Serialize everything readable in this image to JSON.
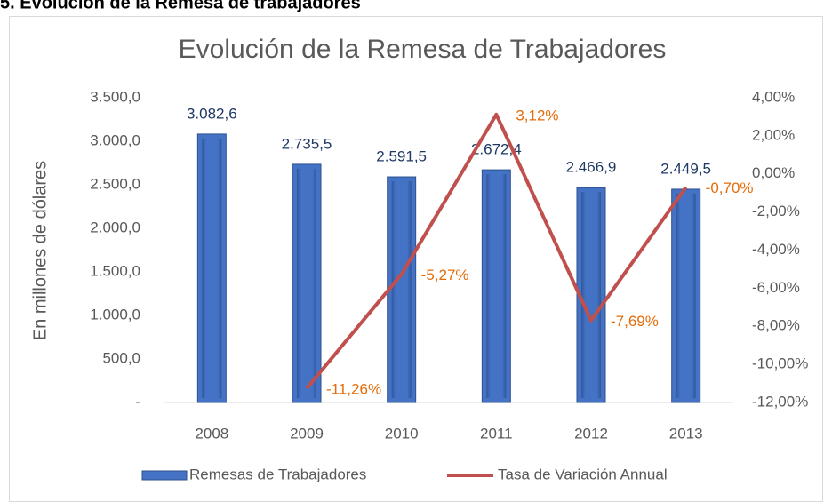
{
  "heading": "5. Evolución de la Remesa de trabajadores",
  "chart_data": {
    "type": "bar",
    "title": "Evolución de la Remesa de Trabajadores",
    "y_label": "En millones de dólares",
    "categories": [
      "2008",
      "2009",
      "2010",
      "2011",
      "2012",
      "2013"
    ],
    "series": [
      {
        "name": "Remesas de Trabajadores",
        "color": "#4472c4",
        "values": [
          3082.6,
          2735.5,
          2591.5,
          2672.4,
          2466.9,
          2449.5
        ],
        "value_labels": [
          "3.082,6",
          "2.735,5",
          "2.591,5",
          "2.672,4",
          "2.466,9",
          "2.449,5"
        ]
      },
      {
        "name": "Tasa de Variación Annual",
        "type": "line",
        "axis": "y2",
        "color": "#c0504d",
        "values": [
          null,
          -11.26,
          -5.27,
          3.12,
          -7.69,
          -0.7
        ],
        "value_labels": [
          null,
          "-11,26%",
          "-5,27%",
          "3,12%",
          "-7,69%",
          "-0,70%"
        ]
      }
    ],
    "ylim": [
      0,
      3500
    ],
    "yticks": [
      {
        "value": 0,
        "label": "-"
      },
      {
        "value": 500,
        "label": "500,0"
      },
      {
        "value": 1000,
        "label": "1.000,0"
      },
      {
        "value": 1500,
        "label": "1.500,0"
      },
      {
        "value": 2000,
        "label": "2.000,0"
      },
      {
        "value": 2500,
        "label": "2.500,0"
      },
      {
        "value": 3000,
        "label": "3.000,0"
      },
      {
        "value": 3500,
        "label": "3.500,0"
      }
    ],
    "y2lim": [
      -12,
      4
    ],
    "y2ticks": [
      {
        "value": -12,
        "label": "-12,00%"
      },
      {
        "value": -10,
        "label": "-10,00%"
      },
      {
        "value": -8,
        "label": "-8,00%"
      },
      {
        "value": -6,
        "label": "-6,00%"
      },
      {
        "value": -4,
        "label": "-4,00%"
      },
      {
        "value": -2,
        "label": "-2,00%"
      },
      {
        "value": 0,
        "label": "0,00%"
      },
      {
        "value": 2,
        "label": "2,00%"
      },
      {
        "value": 4,
        "label": "4,00%"
      }
    ],
    "bar_label_color": "#1f3864",
    "line_label_color": "#e46c0a",
    "legend": "bottom",
    "grid": false
  }
}
